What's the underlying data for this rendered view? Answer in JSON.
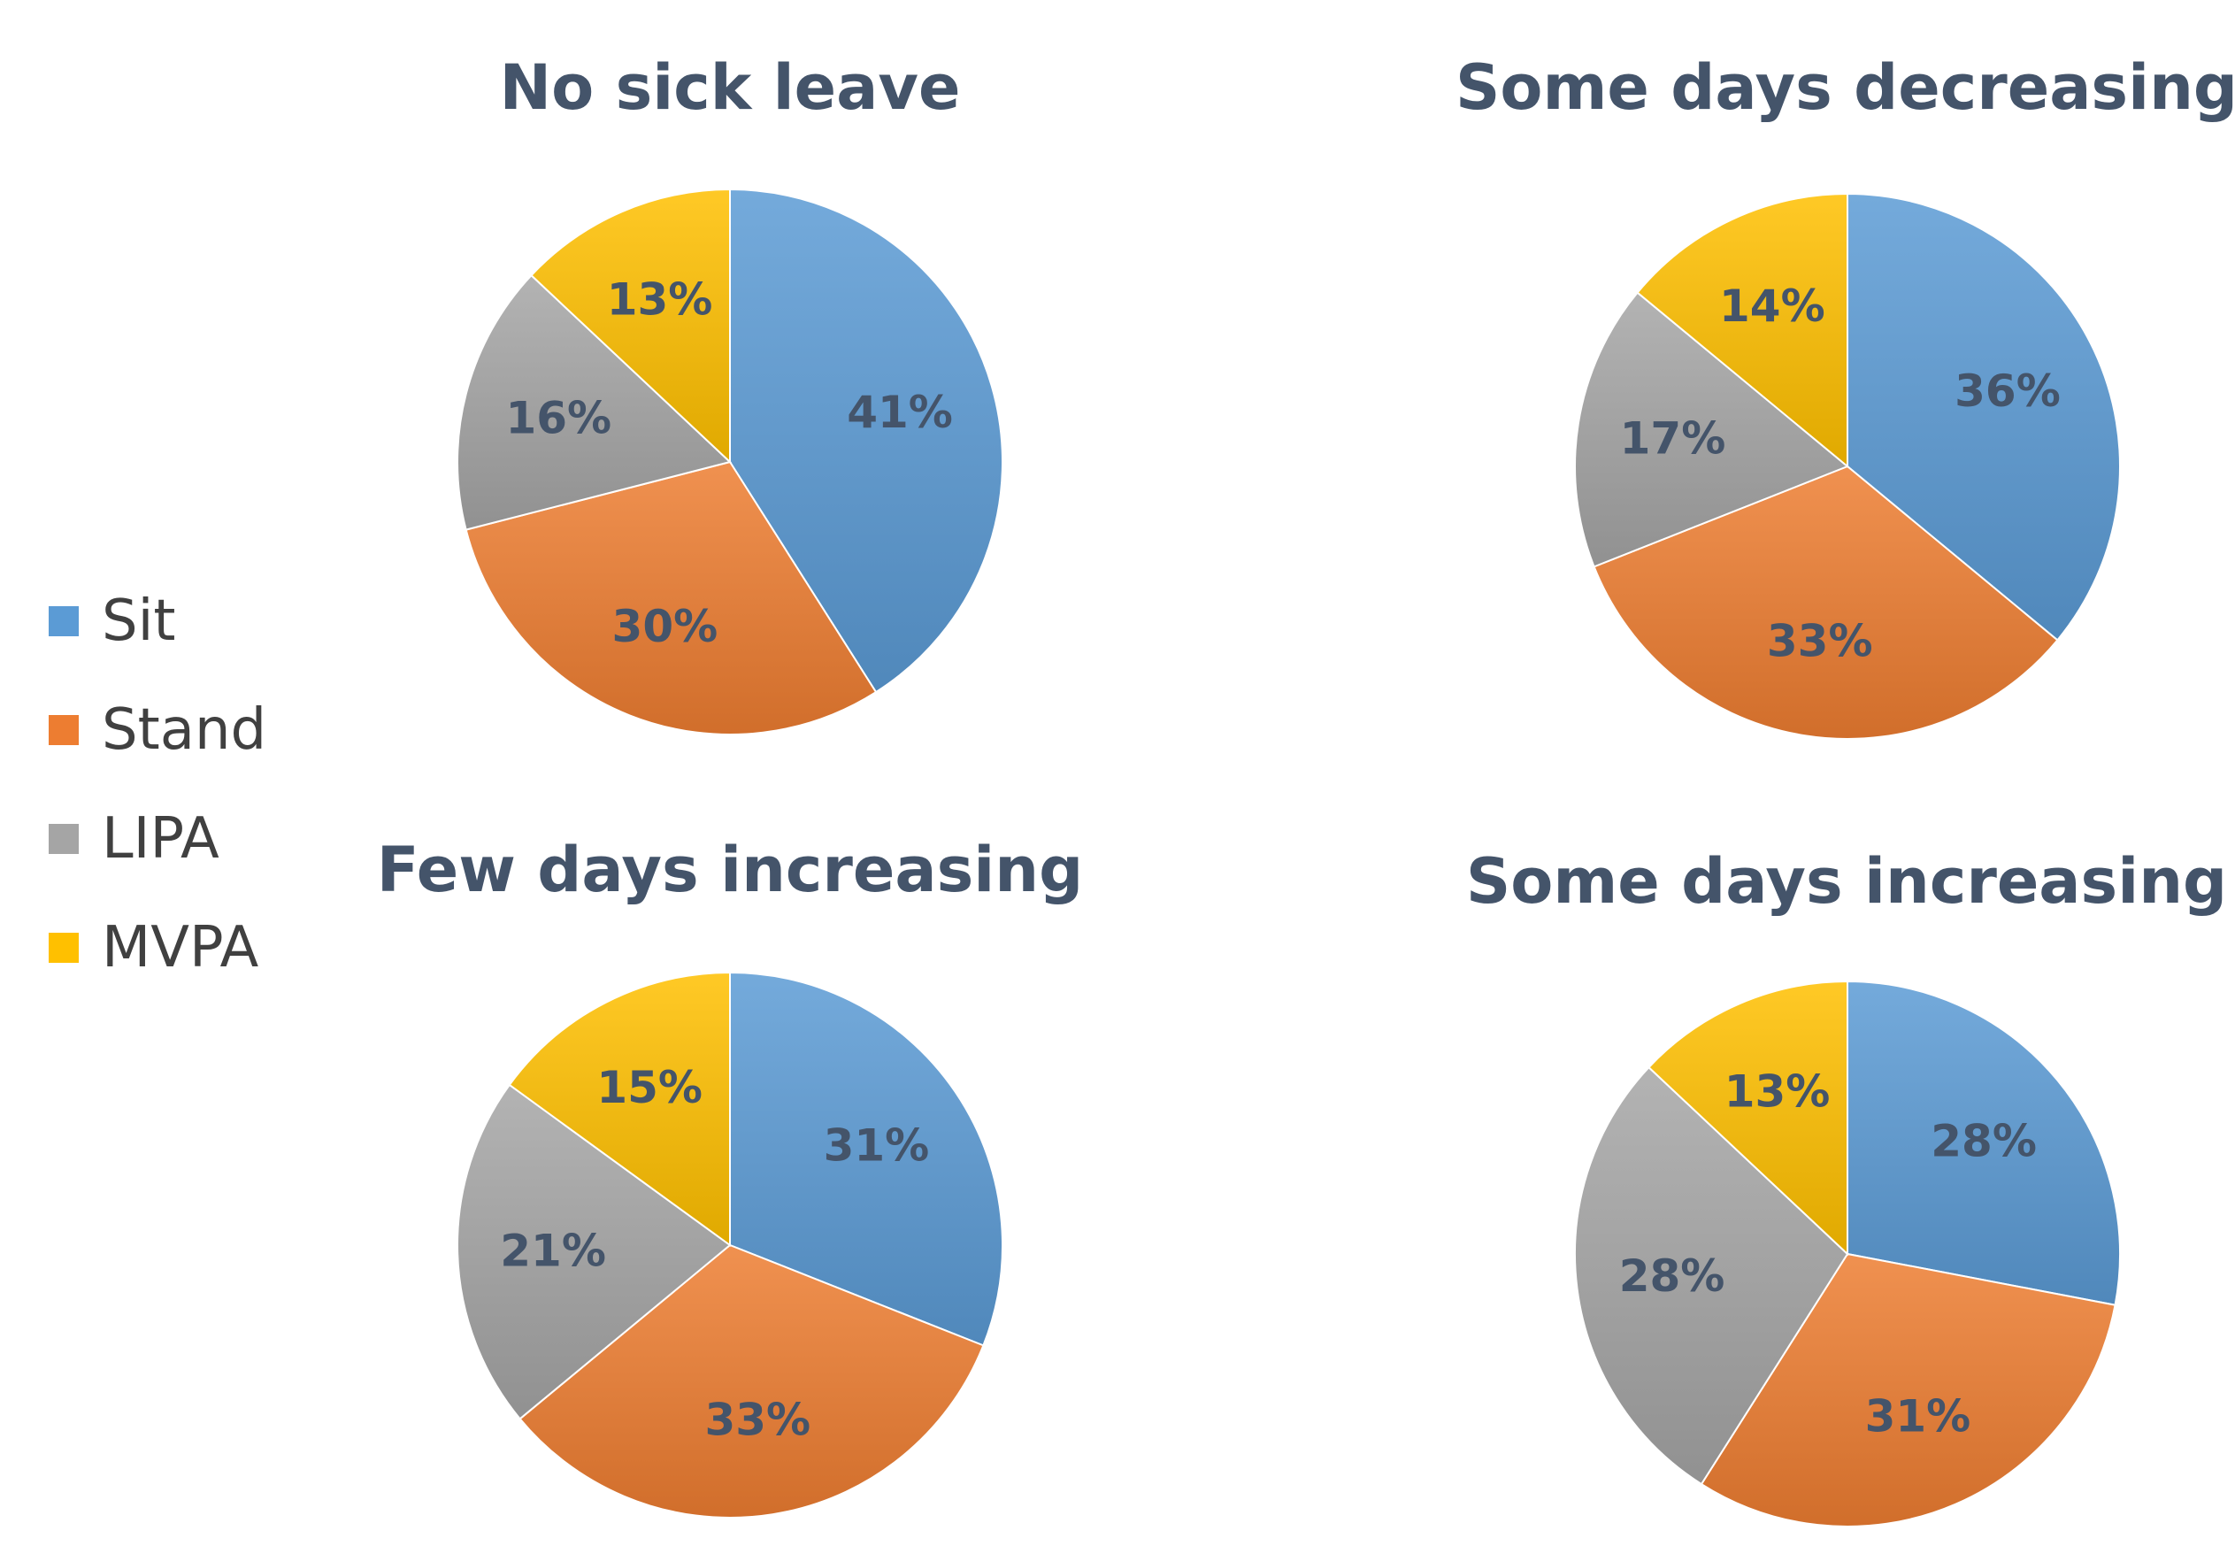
{
  "categories": [
    "Sit",
    "Stand",
    "LIPA",
    "MVPA"
  ],
  "colors": {
    "Sit": "#5b9bd5",
    "Stand": "#ed7d31",
    "LIPA": "#a5a5a5",
    "MVPA": "#ffc000"
  },
  "chart_data": [
    {
      "type": "pie",
      "title": "No sick leave",
      "categories": [
        "Sit",
        "Stand",
        "LIPA",
        "MVPA"
      ],
      "values": [
        41,
        30,
        16,
        13
      ],
      "labels": [
        "41%",
        "30%",
        "16%",
        "13%"
      ],
      "legend": "left"
    },
    {
      "type": "pie",
      "title": "Some days decreasing",
      "categories": [
        "Sit",
        "Stand",
        "LIPA",
        "MVPA"
      ],
      "values": [
        36,
        33,
        17,
        14
      ],
      "labels": [
        "36%",
        "33%",
        "17%",
        "14%"
      ],
      "legend": "left"
    },
    {
      "type": "pie",
      "title": "Few days increasing",
      "categories": [
        "Sit",
        "Stand",
        "LIPA",
        "MVPA"
      ],
      "values": [
        31,
        33,
        21,
        15
      ],
      "labels": [
        "31%",
        "33%",
        "21%",
        "15%"
      ],
      "legend": "left"
    },
    {
      "type": "pie",
      "title": "Some days increasing",
      "categories": [
        "Sit",
        "Stand",
        "LIPA",
        "MVPA"
      ],
      "values": [
        28,
        31,
        28,
        13
      ],
      "labels": [
        "28%",
        "31%",
        "28%",
        "13%"
      ],
      "legend": "left"
    }
  ]
}
